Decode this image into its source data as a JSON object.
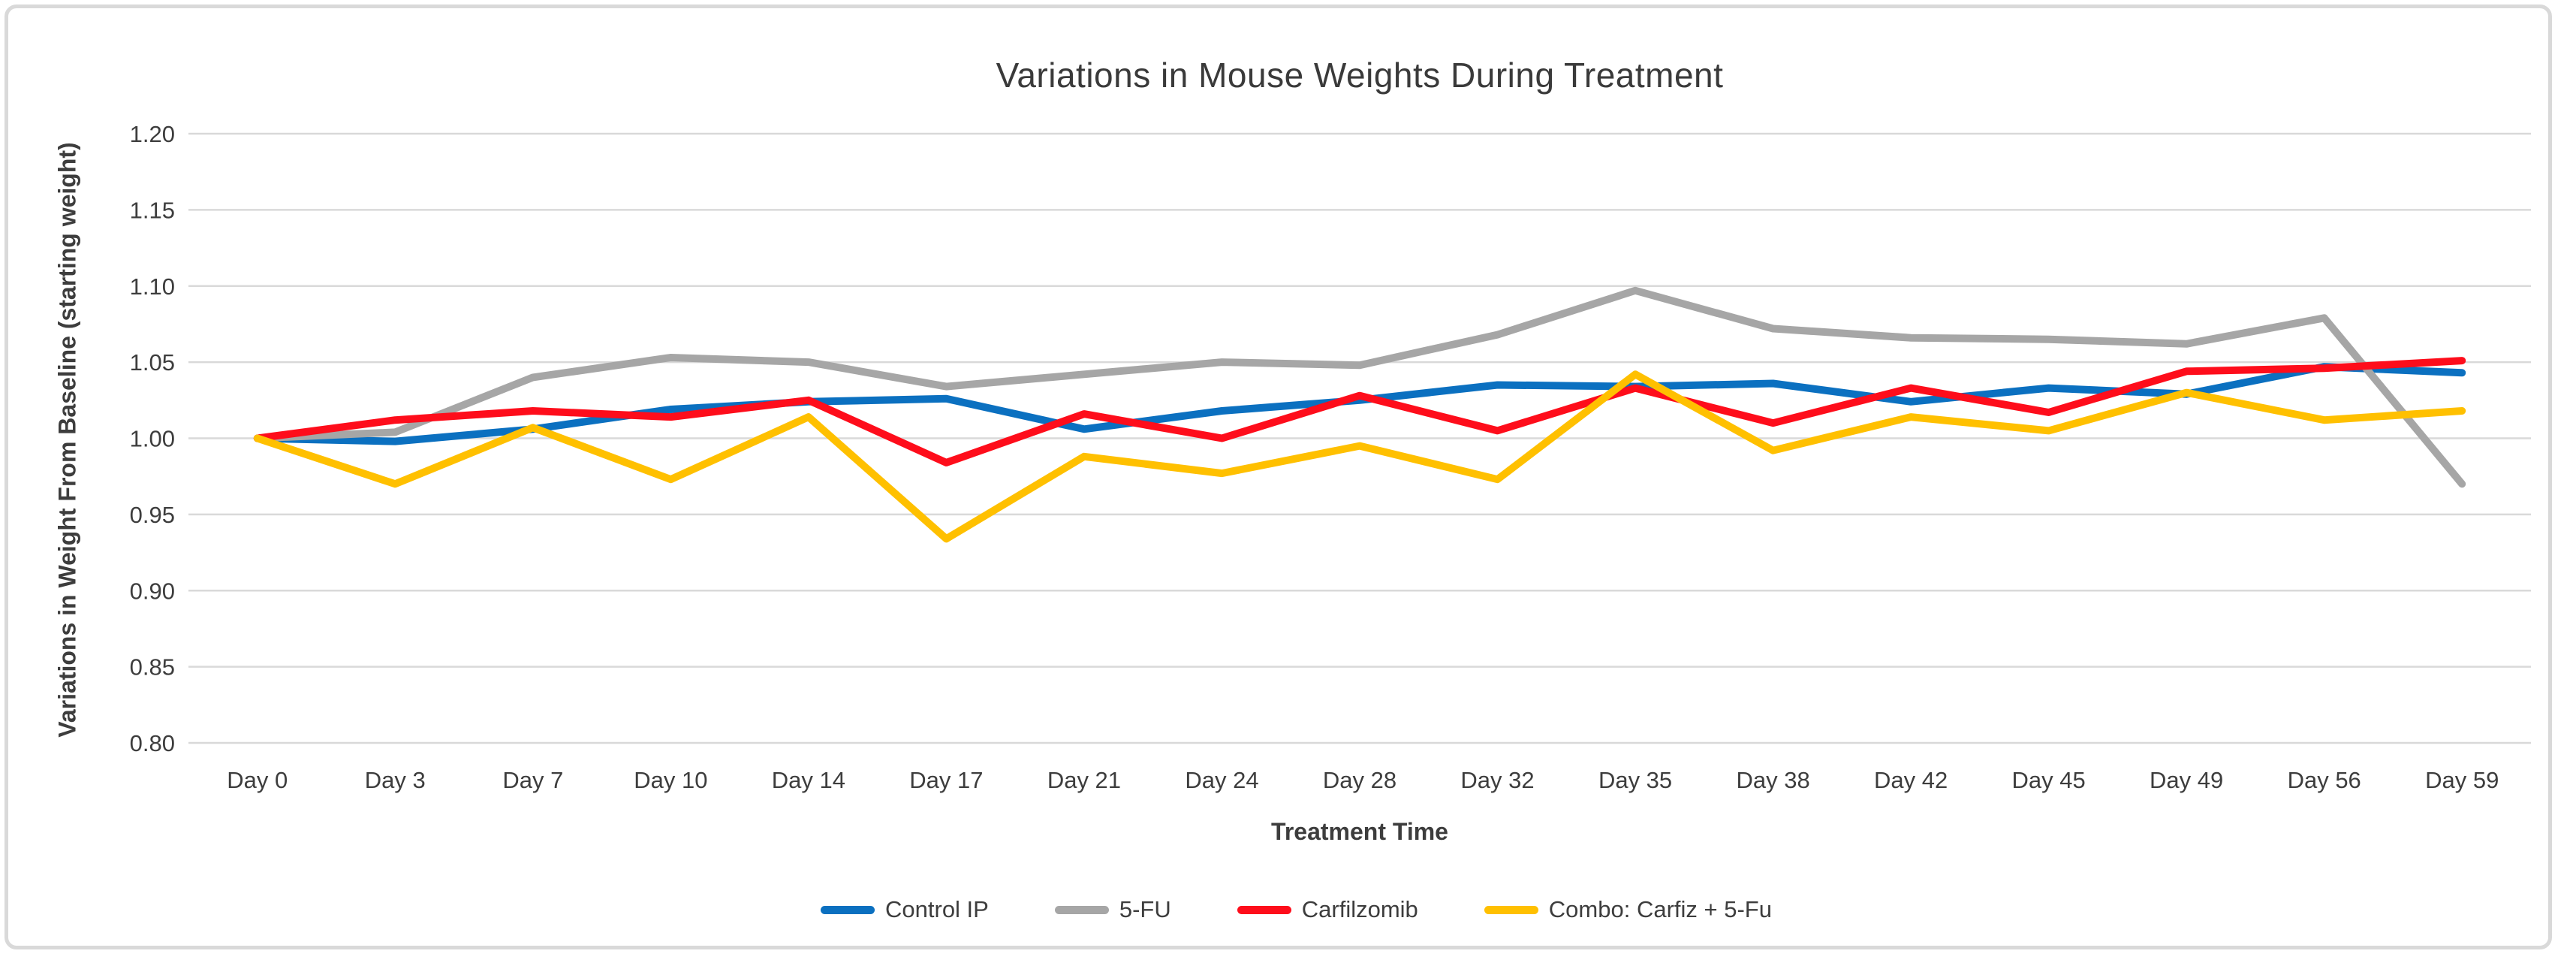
{
  "chart_data": {
    "type": "line",
    "title": "Variations in Mouse Weights During Treatment",
    "xlabel": "Treatment Time",
    "ylabel": "Variations in Weight From Baseline (starting weight)",
    "categories": [
      "Day 0",
      "Day 3",
      "Day 7",
      "Day 10",
      "Day 14",
      "Day 17",
      "Day 21",
      "Day 24",
      "Day 28",
      "Day 32",
      "Day 35",
      "Day 38",
      "Day 42",
      "Day 45",
      "Day 49",
      "Day 56",
      "Day 59"
    ],
    "ylim": [
      0.8,
      1.2
    ],
    "ytick_step": 0.05,
    "ytick_labels": [
      "1.20",
      "1.15",
      "1.10",
      "1.05",
      "1.00",
      "0.95",
      "0.90",
      "0.85",
      "0.80"
    ],
    "grid": "horizontal",
    "legend_position": "bottom",
    "series": [
      {
        "name": "Control IP",
        "color": "#0b70c0",
        "values": [
          1.0,
          0.998,
          1.006,
          1.019,
          1.024,
          1.026,
          1.006,
          1.018,
          1.025,
          1.035,
          1.034,
          1.036,
          1.024,
          1.033,
          1.029,
          1.047,
          1.043
        ]
      },
      {
        "name": "5-FU",
        "color": "#a6a6a6",
        "values": [
          1.0,
          1.004,
          1.04,
          1.053,
          1.05,
          1.034,
          1.042,
          1.05,
          1.048,
          1.068,
          1.097,
          1.072,
          1.066,
          1.065,
          1.062,
          1.079,
          0.97
        ]
      },
      {
        "name": "Carfilzomib",
        "color": "#fe0d1b",
        "values": [
          1.0,
          1.012,
          1.018,
          1.014,
          1.025,
          0.984,
          1.016,
          1.0,
          1.028,
          1.005,
          1.033,
          1.01,
          1.033,
          1.017,
          1.044,
          1.046,
          1.051
        ]
      },
      {
        "name": "Combo: Carfiz + 5-Fu",
        "color": "#ffc000",
        "values": [
          1.0,
          0.97,
          1.007,
          0.973,
          1.014,
          0.934,
          0.988,
          0.977,
          0.995,
          0.973,
          1.042,
          0.992,
          1.014,
          1.005,
          1.03,
          1.012,
          1.018
        ]
      }
    ],
    "gridline_color": "#d9d9d9",
    "tick_label_color": "#3d3d3d",
    "line_width": 10
  }
}
